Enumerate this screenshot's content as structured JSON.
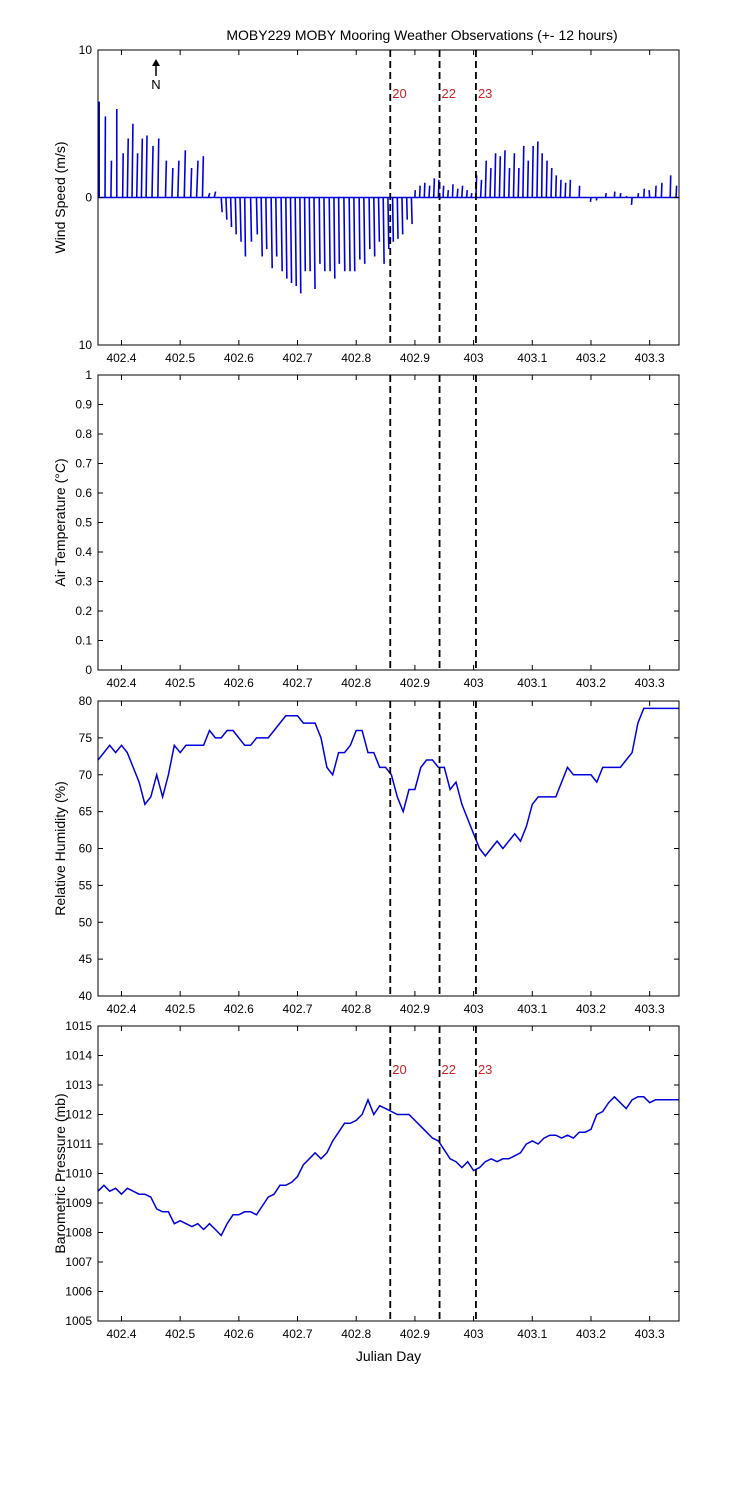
{
  "title": "MOBY229 MOBY Mooring Weather Observations (+- 12 hours)",
  "north_label": "N",
  "colors": {
    "series": "#0000dd",
    "marker_label": "#cc2222",
    "axes": "#000000"
  },
  "chart_data": [
    {
      "type": "wind_vectors",
      "ylabel": "Wind Speed (m/s)",
      "xlabel": "",
      "xlim": [
        402.36,
        403.35
      ],
      "ylim": [
        -10,
        10
      ],
      "xticks": [
        402.4,
        402.5,
        402.6,
        402.7,
        402.8,
        402.9,
        403.0,
        403.1,
        403.2,
        403.3
      ],
      "xtick_labels": [
        "402.4",
        "402.5",
        "402.6",
        "402.7",
        "402.8",
        "402.9",
        "403",
        "403.1",
        "403.2",
        "403.3"
      ],
      "yticks": [
        -10,
        0,
        10
      ],
      "ytick_labels": [
        "10",
        "0",
        "10"
      ],
      "show_marker_labels": true,
      "vectors": [
        [
          402.362,
          0.0,
          6.5
        ],
        [
          402.372,
          0.2,
          5.5
        ],
        [
          402.382,
          0.3,
          2.5
        ],
        [
          402.392,
          0.0,
          6.0
        ],
        [
          402.402,
          0.3,
          3.0
        ],
        [
          402.41,
          0.5,
          4.0
        ],
        [
          402.418,
          0.5,
          5.0
        ],
        [
          402.426,
          0.5,
          3.0
        ],
        [
          402.434,
          0.5,
          4.0
        ],
        [
          402.442,
          0.5,
          4.2
        ],
        [
          402.452,
          0.6,
          3.5
        ],
        [
          402.462,
          0.5,
          4.0
        ],
        [
          402.475,
          0.5,
          2.5
        ],
        [
          402.486,
          0.5,
          2.0
        ],
        [
          402.496,
          0.6,
          2.5
        ],
        [
          402.507,
          0.6,
          3.2
        ],
        [
          402.518,
          0.5,
          2.0
        ],
        [
          402.528,
          0.8,
          2.5
        ],
        [
          402.538,
          0.5,
          2.8
        ],
        [
          402.548,
          0.8,
          0.3
        ],
        [
          402.558,
          0.8,
          0.4
        ],
        [
          402.57,
          0.5,
          -1.0
        ],
        [
          402.578,
          0.5,
          -1.5
        ],
        [
          402.586,
          0.5,
          -2.0
        ],
        [
          402.594,
          0.5,
          -2.5
        ],
        [
          402.602,
          0.6,
          -3.0
        ],
        [
          402.61,
          0.4,
          -4.0
        ],
        [
          402.62,
          0.5,
          -3.0
        ],
        [
          402.63,
          0.5,
          -2.5
        ],
        [
          402.638,
          0.6,
          -4.0
        ],
        [
          402.646,
          0.5,
          -3.5
        ],
        [
          402.655,
          0.6,
          -4.8
        ],
        [
          402.663,
          0.5,
          -4.0
        ],
        [
          402.672,
          0.6,
          -5.0
        ],
        [
          402.68,
          0.6,
          -5.5
        ],
        [
          402.688,
          0.6,
          -5.8
        ],
        [
          402.696,
          0.6,
          -6.0
        ],
        [
          402.704,
          0.5,
          -6.5
        ],
        [
          402.712,
          0.4,
          -5.0
        ],
        [
          402.72,
          0.5,
          -5.0
        ],
        [
          402.728,
          0.6,
          -6.2
        ],
        [
          402.737,
          0.4,
          -4.5
        ],
        [
          402.745,
          0.5,
          -5.0
        ],
        [
          402.754,
          0.5,
          -5.0
        ],
        [
          402.762,
          0.5,
          -5.5
        ],
        [
          402.77,
          0.4,
          -4.5
        ],
        [
          402.779,
          0.5,
          -5.0
        ],
        [
          402.788,
          0.5,
          -5.0
        ],
        [
          402.796,
          0.5,
          -5.0
        ],
        [
          402.805,
          0.4,
          -4.2
        ],
        [
          402.813,
          0.5,
          -4.5
        ],
        [
          402.822,
          0.4,
          -3.5
        ],
        [
          402.83,
          0.5,
          -4.0
        ],
        [
          402.838,
          0.5,
          -3.0
        ],
        [
          402.846,
          0.5,
          -4.5
        ],
        [
          402.854,
          0.5,
          -3.5
        ],
        [
          402.862,
          0.4,
          -3.0
        ],
        [
          402.87,
          0.4,
          -2.8
        ],
        [
          402.878,
          0.4,
          -2.5
        ],
        [
          402.886,
          0.3,
          -1.5
        ],
        [
          402.894,
          0.4,
          -1.8
        ],
        [
          402.9,
          0.2,
          0.5
        ],
        [
          402.908,
          0.3,
          0.8
        ],
        [
          402.916,
          0.3,
          1.0
        ],
        [
          402.924,
          0.4,
          0.8
        ],
        [
          402.932,
          0.4,
          1.3
        ],
        [
          402.94,
          0.3,
          1.2
        ],
        [
          402.948,
          0.3,
          0.8
        ],
        [
          402.956,
          0.3,
          0.5
        ],
        [
          402.964,
          0.3,
          0.9
        ],
        [
          402.972,
          0.4,
          0.6
        ],
        [
          402.98,
          0.4,
          0.8
        ],
        [
          402.988,
          0.4,
          0.5
        ],
        [
          402.996,
          0.3,
          0.3
        ],
        [
          403.004,
          0.4,
          1.5
        ],
        [
          403.012,
          0.5,
          1.2
        ],
        [
          403.02,
          0.5,
          2.5
        ],
        [
          403.028,
          0.5,
          2.0
        ],
        [
          403.036,
          0.5,
          3.0
        ],
        [
          403.044,
          0.5,
          2.8
        ],
        [
          403.052,
          0.5,
          3.2
        ],
        [
          403.06,
          0.4,
          2.0
        ],
        [
          403.068,
          0.5,
          3.0
        ],
        [
          403.076,
          0.4,
          2.0
        ],
        [
          403.084,
          0.5,
          3.5
        ],
        [
          403.092,
          0.4,
          2.5
        ],
        [
          403.1,
          0.5,
          3.5
        ],
        [
          403.108,
          0.5,
          3.8
        ],
        [
          403.116,
          0.3,
          3.0
        ],
        [
          403.124,
          0.4,
          2.5
        ],
        [
          403.132,
          0.4,
          2.0
        ],
        [
          403.14,
          0.3,
          1.5
        ],
        [
          403.148,
          0.3,
          1.2
        ],
        [
          403.156,
          0.3,
          1.0
        ],
        [
          403.164,
          0.3,
          1.2
        ],
        [
          403.18,
          0.2,
          0.8
        ],
        [
          403.2,
          -0.3,
          -0.3
        ],
        [
          403.21,
          -0.3,
          -0.2
        ],
        [
          403.225,
          0.3,
          0.3
        ],
        [
          403.24,
          0.2,
          0.4
        ],
        [
          403.25,
          0.2,
          0.3
        ],
        [
          403.26,
          0.3,
          0.1
        ],
        [
          403.27,
          -0.3,
          -0.5
        ],
        [
          403.28,
          0.3,
          0.3
        ],
        [
          403.29,
          0.3,
          0.6
        ],
        [
          403.3,
          -0.3,
          0.5
        ],
        [
          403.31,
          0.3,
          0.8
        ],
        [
          403.32,
          0.3,
          1.0
        ],
        [
          403.335,
          0.3,
          1.5
        ],
        [
          403.345,
          0.3,
          0.8
        ]
      ]
    },
    {
      "type": "line",
      "ylabel": "Air Temperature (°C)",
      "xlabel": "",
      "xlim": [
        402.36,
        403.35
      ],
      "ylim": [
        0,
        1
      ],
      "xticks": [
        402.4,
        402.5,
        402.6,
        402.7,
        402.8,
        402.9,
        403.0,
        403.1,
        403.2,
        403.3
      ],
      "xtick_labels": [
        "402.4",
        "402.5",
        "402.6",
        "402.7",
        "402.8",
        "402.9",
        "403",
        "403.1",
        "403.2",
        "403.3"
      ],
      "yticks": [
        0,
        0.1,
        0.2,
        0.3,
        0.4,
        0.5,
        0.6,
        0.7,
        0.8,
        0.9,
        1
      ],
      "ytick_labels": [
        "0",
        "0.1",
        "0.2",
        "0.3",
        "0.4",
        "0.5",
        "0.6",
        "0.7",
        "0.8",
        "0.9",
        "1"
      ],
      "show_marker_labels": false,
      "x": [],
      "y": []
    },
    {
      "type": "line",
      "ylabel": "Relative Humidity (%)",
      "xlabel": "",
      "xlim": [
        402.36,
        403.35
      ],
      "ylim": [
        40,
        80
      ],
      "xticks": [
        402.4,
        402.5,
        402.6,
        402.7,
        402.8,
        402.9,
        403.0,
        403.1,
        403.2,
        403.3
      ],
      "xtick_labels": [
        "402.4",
        "402.5",
        "402.6",
        "402.7",
        "402.8",
        "402.9",
        "403",
        "403.1",
        "403.2",
        "403.3"
      ],
      "yticks": [
        40,
        45,
        50,
        55,
        60,
        65,
        70,
        75,
        80
      ],
      "ytick_labels": [
        "40",
        "45",
        "50",
        "55",
        "60",
        "65",
        "70",
        "75",
        "80"
      ],
      "show_marker_labels": false,
      "x": [
        402.36,
        402.37,
        402.38,
        402.39,
        402.4,
        402.41,
        402.42,
        402.43,
        402.44,
        402.45,
        402.46,
        402.47,
        402.48,
        402.49,
        402.5,
        402.51,
        402.52,
        402.53,
        402.54,
        402.55,
        402.56,
        402.57,
        402.58,
        402.59,
        402.6,
        402.61,
        402.62,
        402.63,
        402.64,
        402.65,
        402.66,
        402.67,
        402.68,
        402.69,
        402.7,
        402.71,
        402.72,
        402.73,
        402.74,
        402.75,
        402.76,
        402.77,
        402.78,
        402.79,
        402.8,
        402.81,
        402.82,
        402.83,
        402.84,
        402.85,
        402.86,
        402.87,
        402.88,
        402.89,
        402.9,
        402.91,
        402.92,
        402.93,
        402.94,
        402.95,
        402.96,
        402.97,
        402.98,
        402.99,
        403.0,
        403.01,
        403.02,
        403.03,
        403.04,
        403.05,
        403.06,
        403.07,
        403.08,
        403.09,
        403.1,
        403.11,
        403.12,
        403.13,
        403.14,
        403.15,
        403.16,
        403.17,
        403.18,
        403.19,
        403.2,
        403.21,
        403.22,
        403.23,
        403.24,
        403.25,
        403.26,
        403.27,
        403.28,
        403.29,
        403.3,
        403.31,
        403.32,
        403.33,
        403.34,
        403.35
      ],
      "y": [
        72,
        73,
        74,
        73,
        74,
        73,
        71,
        69,
        66,
        67,
        70,
        67,
        70,
        74,
        73,
        74,
        74,
        74,
        74,
        76,
        75,
        75,
        76,
        76,
        75,
        74,
        74,
        75,
        75,
        75,
        76,
        77,
        78,
        78,
        78,
        77,
        77,
        77,
        75,
        71,
        70,
        73,
        73,
        74,
        76,
        76,
        73,
        73,
        71,
        71,
        70,
        67,
        65,
        68,
        68,
        71,
        72,
        72,
        71,
        71,
        68,
        69,
        66,
        64,
        62,
        60,
        59,
        60,
        61,
        60,
        61,
        62,
        61,
        63,
        66,
        67,
        67,
        67,
        67,
        69,
        71,
        70,
        70,
        70,
        70,
        69,
        71,
        71,
        71,
        71,
        72,
        73,
        77,
        79,
        79,
        79,
        79,
        79,
        79,
        79
      ]
    },
    {
      "type": "line",
      "ylabel": "Barometric Pressure (mb)",
      "xlabel": "Julian Day",
      "xlim": [
        402.36,
        403.35
      ],
      "ylim": [
        1005,
        1015
      ],
      "xticks": [
        402.4,
        402.5,
        402.6,
        402.7,
        402.8,
        402.9,
        403.0,
        403.1,
        403.2,
        403.3
      ],
      "xtick_labels": [
        "402.4",
        "402.5",
        "402.6",
        "402.7",
        "402.8",
        "402.9",
        "403",
        "403.1",
        "403.2",
        "403.3"
      ],
      "yticks": [
        1005,
        1006,
        1007,
        1008,
        1009,
        1010,
        1011,
        1012,
        1013,
        1014,
        1015
      ],
      "ytick_labels": [
        "1005",
        "1006",
        "1007",
        "1008",
        "1009",
        "1010",
        "1011",
        "1012",
        "1013",
        "1014",
        "1015"
      ],
      "show_marker_labels": true,
      "x": [
        402.36,
        402.37,
        402.38,
        402.39,
        402.4,
        402.41,
        402.42,
        402.43,
        402.44,
        402.45,
        402.46,
        402.47,
        402.48,
        402.49,
        402.5,
        402.51,
        402.52,
        402.53,
        402.54,
        402.55,
        402.56,
        402.57,
        402.58,
        402.59,
        402.6,
        402.61,
        402.62,
        402.63,
        402.64,
        402.65,
        402.66,
        402.67,
        402.68,
        402.69,
        402.7,
        402.71,
        402.72,
        402.73,
        402.74,
        402.75,
        402.76,
        402.77,
        402.78,
        402.79,
        402.8,
        402.81,
        402.82,
        402.83,
        402.84,
        402.85,
        402.86,
        402.87,
        402.88,
        402.89,
        402.9,
        402.91,
        402.92,
        402.93,
        402.94,
        402.95,
        402.96,
        402.97,
        402.98,
        402.99,
        403.0,
        403.01,
        403.02,
        403.03,
        403.04,
        403.05,
        403.06,
        403.07,
        403.08,
        403.09,
        403.1,
        403.11,
        403.12,
        403.13,
        403.14,
        403.15,
        403.16,
        403.17,
        403.18,
        403.19,
        403.2,
        403.21,
        403.22,
        403.23,
        403.24,
        403.25,
        403.26,
        403.27,
        403.28,
        403.29,
        403.3,
        403.31,
        403.32,
        403.33,
        403.34,
        403.35
      ],
      "y": [
        1009.4,
        1009.6,
        1009.4,
        1009.5,
        1009.3,
        1009.5,
        1009.4,
        1009.3,
        1009.3,
        1009.2,
        1008.8,
        1008.7,
        1008.7,
        1008.3,
        1008.4,
        1008.3,
        1008.2,
        1008.3,
        1008.1,
        1008.3,
        1008.1,
        1007.9,
        1008.3,
        1008.6,
        1008.6,
        1008.7,
        1008.7,
        1008.6,
        1008.9,
        1009.2,
        1009.3,
        1009.6,
        1009.6,
        1009.7,
        1009.9,
        1010.3,
        1010.5,
        1010.7,
        1010.5,
        1010.7,
        1011.1,
        1011.4,
        1011.7,
        1011.7,
        1011.8,
        1012.0,
        1012.5,
        1012.0,
        1012.3,
        1012.2,
        1012.1,
        1012.0,
        1012.0,
        1012.0,
        1011.8,
        1011.6,
        1011.4,
        1011.2,
        1011.1,
        1010.8,
        1010.5,
        1010.4,
        1010.2,
        1010.4,
        1010.1,
        1010.2,
        1010.4,
        1010.5,
        1010.4,
        1010.5,
        1010.5,
        1010.6,
        1010.7,
        1011.0,
        1011.1,
        1011.0,
        1011.2,
        1011.3,
        1011.3,
        1011.2,
        1011.3,
        1011.2,
        1011.4,
        1011.4,
        1011.5,
        1012.0,
        1012.1,
        1012.4,
        1012.6,
        1012.4,
        1012.2,
        1012.5,
        1012.6,
        1012.6,
        1012.4,
        1012.5,
        1012.5,
        1012.5,
        1012.5,
        1012.5
      ]
    }
  ],
  "event_markers": [
    {
      "x": 402.858,
      "label": "20"
    },
    {
      "x": 402.942,
      "label": "22"
    },
    {
      "x": 403.004,
      "label": "23"
    }
  ]
}
